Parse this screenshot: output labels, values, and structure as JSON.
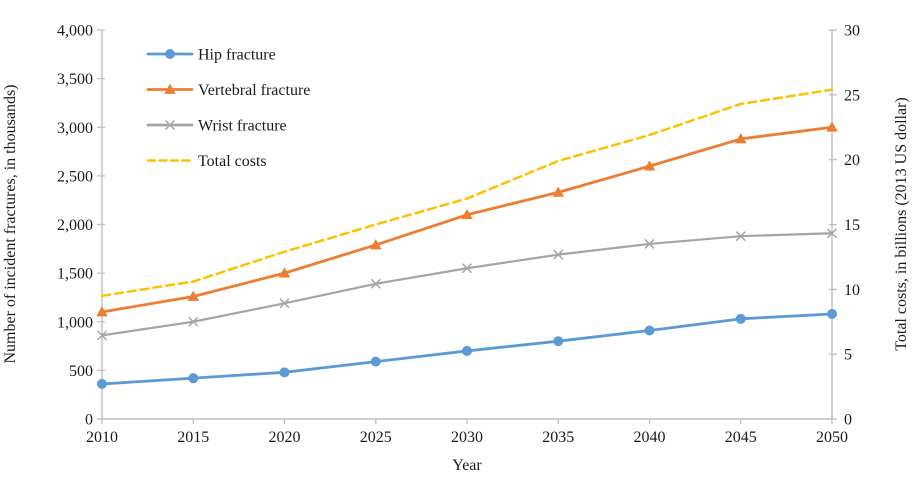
{
  "chart_data": {
    "type": "line",
    "title": "",
    "xlabel": "Year",
    "ylabel_left": "Number of incident fractures, in thousands)",
    "ylabel_right": "Total costs, in billions (2013 US dollar)",
    "x": [
      2010,
      2015,
      2020,
      2025,
      2030,
      2035,
      2040,
      2045,
      2050
    ],
    "ylim_left": [
      0,
      4000
    ],
    "ytick_step_left": 500,
    "ylim_right": [
      0,
      30
    ],
    "ytick_step_right": 5,
    "grid": false,
    "legend_position": "top-left-inside",
    "axis_color": "#BFBFBF",
    "text_color": "#1A1A1A",
    "series": [
      {
        "name": "Hip fracture",
        "axis": "left",
        "color": "#5B9BD5",
        "marker": "circle",
        "line": "solid",
        "values": [
          360,
          420,
          480,
          590,
          700,
          800,
          910,
          1030,
          1080
        ]
      },
      {
        "name": "Vertebral fracture",
        "axis": "left",
        "color": "#ED7D31",
        "marker": "triangle",
        "line": "solid",
        "values": [
          1100,
          1260,
          1500,
          1790,
          2100,
          2330,
          2600,
          2880,
          3000
        ]
      },
      {
        "name": "Wrist fracture",
        "axis": "left",
        "color": "#A5A5A5",
        "marker": "x",
        "line": "solid",
        "values": [
          860,
          1000,
          1190,
          1390,
          1550,
          1690,
          1800,
          1880,
          1910
        ]
      },
      {
        "name": "Total costs",
        "axis": "right",
        "color": "#FFC000",
        "marker": "none",
        "line": "dashed",
        "values": [
          9.5,
          10.6,
          12.9,
          15.0,
          17.0,
          19.9,
          21.9,
          24.3,
          25.4
        ]
      }
    ]
  }
}
